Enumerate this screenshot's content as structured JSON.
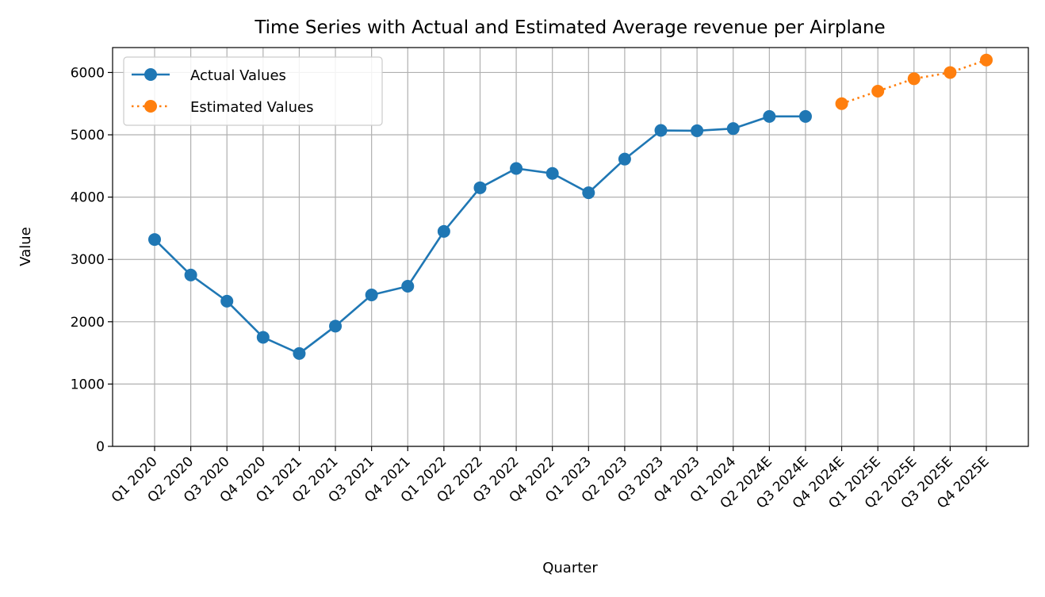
{
  "chart_data": {
    "type": "line",
    "title": "Time Series with Actual and Estimated Average revenue per Airplane",
    "xlabel": "Quarter",
    "ylabel": "Value",
    "ylim": [
      0,
      6400
    ],
    "yticks": [
      0,
      1000,
      2000,
      3000,
      4000,
      5000,
      6000
    ],
    "grid": true,
    "legend_position": "upper-left",
    "categories": [
      "Q1 2020",
      "Q2 2020",
      "Q3 2020",
      "Q4 2020",
      "Q1 2021",
      "Q2 2021",
      "Q3 2021",
      "Q4 2021",
      "Q1 2022",
      "Q2 2022",
      "Q3 2022",
      "Q4 2022",
      "Q1 2023",
      "Q2 2023",
      "Q3 2023",
      "Q4 2023",
      "Q1 2024",
      "Q2 2024E",
      "Q3 2024E",
      "Q4 2024E",
      "Q1 2025E",
      "Q2 2025E",
      "Q3 2025E",
      "Q4 2025E"
    ],
    "series": [
      {
        "name": "Actual Values",
        "color": "#1f77b4",
        "line_style": "solid",
        "marker": "circle",
        "values": [
          3320,
          2750,
          2330,
          1750,
          1490,
          1930,
          2430,
          2570,
          3450,
          4150,
          4460,
          4380,
          4070,
          4610,
          5070,
          5065,
          5100,
          5295,
          5295,
          null,
          null,
          null,
          null,
          null
        ]
      },
      {
        "name": "Estimated Values",
        "color": "#ff7f0e",
        "line_style": "dotted",
        "marker": "circle",
        "values": [
          null,
          null,
          null,
          null,
          null,
          null,
          null,
          null,
          null,
          null,
          null,
          null,
          null,
          null,
          null,
          null,
          null,
          null,
          null,
          5500,
          5700,
          5900,
          6000,
          6200
        ]
      }
    ]
  }
}
